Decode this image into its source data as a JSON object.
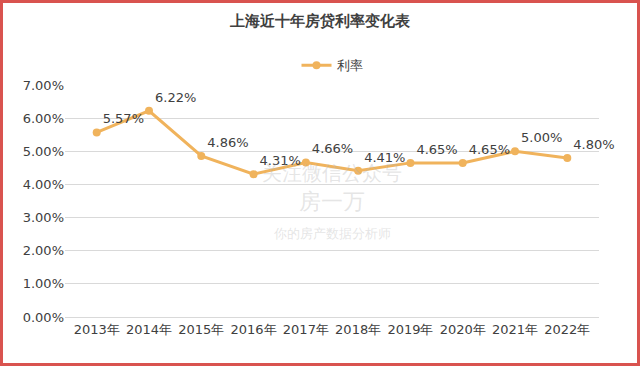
{
  "chart_data": {
    "type": "line",
    "title": "上海近十年房贷利率变化表",
    "categories": [
      "2013年",
      "2014年",
      "2015年",
      "2016年",
      "2017年",
      "2018年",
      "2019年",
      "2020年",
      "2021年",
      "2022年"
    ],
    "series": [
      {
        "name": "利率",
        "color": "#f0b35c",
        "marker": "circle",
        "values": [
          5.57,
          6.22,
          4.86,
          4.31,
          4.66,
          4.41,
          4.65,
          4.65,
          5.0,
          4.8
        ],
        "value_labels": [
          "5.57%",
          "6.22%",
          "4.86%",
          "4.31%",
          "4.66%",
          "4.41%",
          "4.65%",
          "4.65%",
          "5.00%",
          "4.80%"
        ]
      }
    ],
    "ylim": [
      0,
      7
    ],
    "yticks": [
      {
        "value": 0,
        "label": "0.00%"
      },
      {
        "value": 1,
        "label": "1.00%"
      },
      {
        "value": 2,
        "label": "2.00%"
      },
      {
        "value": 3,
        "label": "3.00%"
      },
      {
        "value": 4,
        "label": "4.00%"
      },
      {
        "value": 5,
        "label": "5.00%"
      },
      {
        "value": 6,
        "label": "6.00%"
      },
      {
        "value": 7,
        "label": "7.00%"
      }
    ],
    "grid": true,
    "legend": "top",
    "data_labels": true,
    "annotations": [
      "关注微信公众号",
      "房一万",
      "你的房产数据分析师"
    ]
  }
}
